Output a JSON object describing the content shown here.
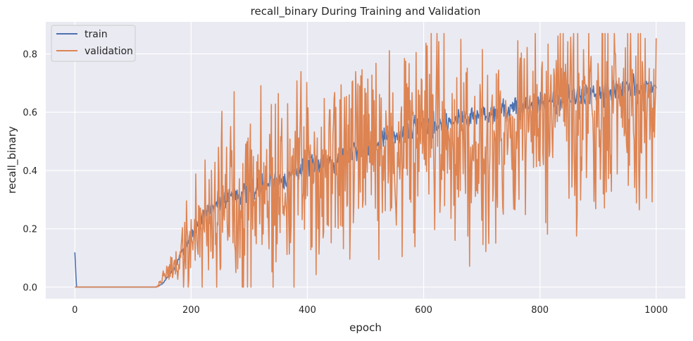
{
  "chart_data": {
    "type": "line",
    "title": "recall_binary During Training and Validation",
    "xlabel": "epoch",
    "ylabel": "recall_binary",
    "xlim": [
      -50,
      1050
    ],
    "ylim": [
      -0.04,
      0.91
    ],
    "xticks": [
      0,
      200,
      400,
      600,
      800,
      1000
    ],
    "yticks": [
      0.0,
      0.2,
      0.4,
      0.6,
      0.8
    ],
    "xtick_labels": [
      "0",
      "200",
      "400",
      "600",
      "800",
      "1000"
    ],
    "ytick_labels": [
      "0.0",
      "0.2",
      "0.4",
      "0.6",
      "0.8"
    ],
    "grid": true,
    "legend_position": "top-left",
    "epochs": 1000,
    "series": [
      {
        "name": "train",
        "color": "#4c72b0",
        "trend": [
          [
            0,
            0.115
          ],
          [
            3,
            0
          ],
          [
            140,
            0
          ],
          [
            150,
            0.01
          ],
          [
            170,
            0.06
          ],
          [
            190,
            0.14
          ],
          [
            200,
            0.18
          ],
          [
            230,
            0.27
          ],
          [
            260,
            0.31
          ],
          [
            300,
            0.33
          ],
          [
            350,
            0.37
          ],
          [
            400,
            0.41
          ],
          [
            450,
            0.44
          ],
          [
            500,
            0.49
          ],
          [
            550,
            0.52
          ],
          [
            600,
            0.55
          ],
          [
            650,
            0.57
          ],
          [
            700,
            0.59
          ],
          [
            750,
            0.61
          ],
          [
            800,
            0.63
          ],
          [
            850,
            0.65
          ],
          [
            900,
            0.67
          ],
          [
            950,
            0.68
          ],
          [
            1000,
            0.69
          ]
        ],
        "noise": 0.02,
        "seed": 7
      },
      {
        "name": "validation",
        "color": "#dd8452",
        "trend": [
          [
            0,
            0
          ],
          [
            140,
            0
          ],
          [
            155,
            0.04
          ],
          [
            175,
            0.08
          ],
          [
            195,
            0.14
          ],
          [
            210,
            0.19
          ],
          [
            240,
            0.27
          ],
          [
            280,
            0.32
          ],
          [
            320,
            0.33
          ],
          [
            360,
            0.35
          ],
          [
            400,
            0.39
          ],
          [
            450,
            0.41
          ],
          [
            500,
            0.44
          ],
          [
            550,
            0.46
          ],
          [
            600,
            0.48
          ],
          [
            650,
            0.5
          ],
          [
            700,
            0.51
          ],
          [
            750,
            0.53
          ],
          [
            800,
            0.56
          ],
          [
            850,
            0.57
          ],
          [
            900,
            0.58
          ],
          [
            950,
            0.59
          ],
          [
            1000,
            0.6
          ]
        ],
        "noise": 0.17,
        "seed": 19
      }
    ]
  }
}
